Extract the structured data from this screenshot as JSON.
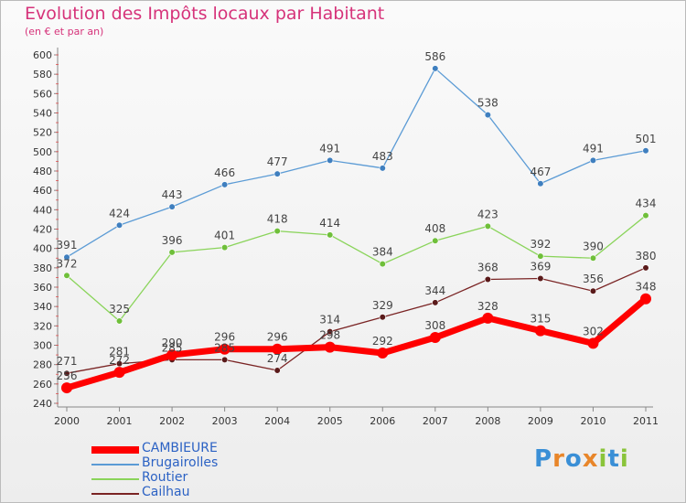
{
  "chart_data": {
    "type": "line",
    "title": "Evolution des Impôts locaux par Habitant",
    "subtitle": "(en € et par an)",
    "xlabel": "",
    "ylabel": "",
    "x": [
      "2000",
      "2001",
      "2002",
      "2003",
      "2004",
      "2005",
      "2006",
      "2007",
      "2008",
      "2009",
      "2010",
      "2011"
    ],
    "ylim": [
      240,
      600
    ],
    "yticks": [
      240,
      260,
      280,
      300,
      320,
      340,
      360,
      380,
      400,
      420,
      440,
      460,
      480,
      500,
      520,
      540,
      560,
      580,
      600
    ],
    "grid": false,
    "legend_position": "bottom-left",
    "series": [
      {
        "name": "CAMBIEURE",
        "color": "#ff0000",
        "values": [
          256,
          272,
          290,
          296,
          296,
          298,
          292,
          308,
          328,
          315,
          302,
          348
        ]
      },
      {
        "name": "Brugairolles",
        "color": "#5b9bd5",
        "values": [
          391,
          424,
          443,
          466,
          477,
          491,
          483,
          586,
          538,
          467,
          491,
          501
        ]
      },
      {
        "name": "Routier",
        "color": "#8ad45a",
        "values": [
          372,
          325,
          396,
          401,
          418,
          414,
          384,
          408,
          423,
          392,
          390,
          434
        ]
      },
      {
        "name": "Cailhau",
        "color": "#7a2424",
        "values": [
          271,
          281,
          285,
          285,
          274,
          314,
          329,
          344,
          368,
          369,
          356,
          380
        ]
      }
    ]
  },
  "logo": {
    "text": "Proxiti",
    "letters": [
      "P",
      "r",
      "o",
      "x",
      "i",
      "t",
      "i"
    ],
    "colors": [
      "#3a8fd6",
      "#e8862a",
      "#3a8fd6",
      "#e8862a",
      "#8ac43a",
      "#3a8fd6",
      "#8ac43a"
    ]
  }
}
